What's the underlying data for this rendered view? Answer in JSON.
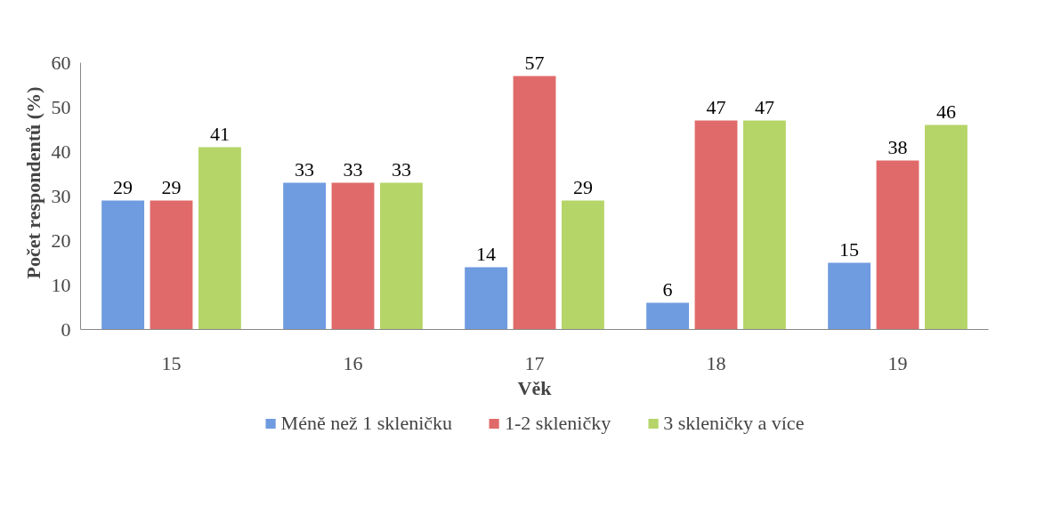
{
  "chart_data": {
    "type": "bar",
    "xlabel": "Věk",
    "ylabel": "Počet respondentů (%)",
    "categories": [
      "15",
      "16",
      "17",
      "18",
      "19"
    ],
    "series": [
      {
        "name": "Méně než 1 skleničku",
        "color": "#6f9be0",
        "values": [
          29,
          33,
          14,
          6,
          15
        ]
      },
      {
        "name": "1-2 skleničky",
        "color": "#e06a6a",
        "values": [
          29,
          33,
          57,
          47,
          38
        ]
      },
      {
        "name": "3 skleničky a více",
        "color": "#b5d568",
        "values": [
          41,
          33,
          29,
          47,
          46
        ]
      }
    ],
    "ylim": [
      0,
      60
    ],
    "yticks": [
      0,
      10,
      20,
      30,
      40,
      50,
      60
    ],
    "data_labels": true,
    "legend": "bottom",
    "grid": false
  }
}
